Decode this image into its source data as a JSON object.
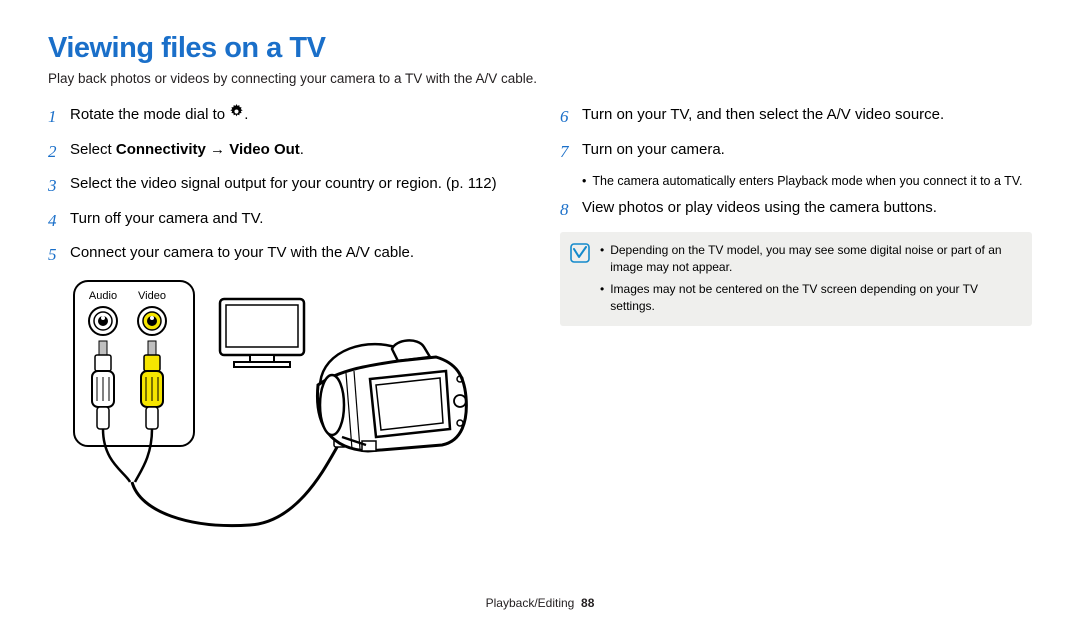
{
  "title": "Viewing files on a TV",
  "subtitle": "Play back photos or videos by connecting your camera to a TV with the A/V cable.",
  "colors": {
    "title": "#1a6fc9",
    "stepnum": "#1a6fc9",
    "text": "#231f20",
    "infobox_bg": "#efefed",
    "infobox_icon_stroke": "#148acb",
    "rca_yellow": "#f6e500",
    "rca_white": "#ffffff",
    "page_bg": "#ffffff"
  },
  "left_steps": [
    {
      "n": "1",
      "parts": [
        {
          "t": "Rotate the mode dial to "
        },
        {
          "icon": "gear"
        },
        {
          "t": "."
        }
      ]
    },
    {
      "n": "2",
      "parts": [
        {
          "t": "Select "
        },
        {
          "t": "Connectivity",
          "bold": true
        },
        {
          "t": " → "
        },
        {
          "t": "Video Out",
          "bold": true
        },
        {
          "t": "."
        }
      ]
    },
    {
      "n": "3",
      "parts": [
        {
          "t": "Select the video signal output for your country or region. (p. 112)"
        }
      ]
    },
    {
      "n": "4",
      "parts": [
        {
          "t": "Turn off your camera and TV."
        }
      ]
    },
    {
      "n": "5",
      "parts": [
        {
          "t": "Connect your camera to your TV with the A/V cable."
        }
      ]
    }
  ],
  "right_steps": [
    {
      "n": "6",
      "parts": [
        {
          "t": "Turn on your TV, and then select the A/V video source."
        }
      ]
    },
    {
      "n": "7",
      "parts": [
        {
          "t": "Turn on your camera."
        }
      ],
      "sub": "The camera automatically enters Playback mode when you connect it to a TV."
    },
    {
      "n": "8",
      "parts": [
        {
          "t": "View photos or play videos using the camera buttons."
        }
      ]
    }
  ],
  "info_notes": [
    "Depending on the TV model, you may see some digital noise or part of an image may not appear.",
    "Images may not be centered on the TV screen depending on your TV settings."
  ],
  "diagram": {
    "audio_label": "Audio",
    "video_label": "Video"
  },
  "footer": {
    "section": "Playback/Editing",
    "page": "88"
  }
}
